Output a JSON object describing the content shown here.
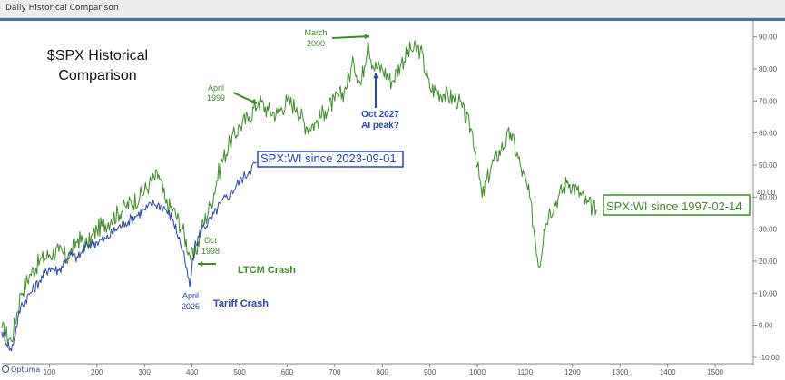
{
  "window": {
    "title": "Daily Historical Comparison"
  },
  "logo": {
    "text": "Optuma"
  },
  "colors": {
    "green": "#3f8a2a",
    "blue": "#2b48a6",
    "axis": "#555555",
    "grid": "#e6e6e6"
  },
  "chart_data": {
    "type": "line",
    "title": "$SPX Historical Comparison",
    "x_ticks": [
      100,
      200,
      300,
      400,
      500,
      600,
      700,
      800,
      900,
      1000,
      1100,
      1200,
      1300,
      1400,
      1500
    ],
    "y_ticks": [
      "-10.00",
      "0.00",
      "10.00",
      "20.00",
      "30.00",
      "40.00",
      "50.00",
      "60.00",
      "70.00",
      "80.00",
      "90.00"
    ],
    "y_tick_values": [
      -10,
      0,
      10,
      20,
      30,
      40,
      50,
      60,
      70,
      80,
      90
    ],
    "xlim": [
      0,
      1580
    ],
    "ylim": [
      -12,
      95
    ],
    "grid": false,
    "series": [
      {
        "name": "SPX:WI since 1997-02-14",
        "color": "#3f8a2a",
        "x": [
          0,
          20,
          40,
          60,
          80,
          100,
          120,
          140,
          160,
          180,
          200,
          230,
          260,
          290,
          310,
          330,
          345,
          360,
          380,
          395,
          405,
          420,
          440,
          460,
          480,
          500,
          520,
          540,
          560,
          580,
          600,
          620,
          640,
          660,
          680,
          700,
          720,
          740,
          755,
          770,
          780,
          800,
          820,
          840,
          860,
          880,
          900,
          930,
          960,
          990,
          1010,
          1030,
          1050,
          1070,
          1090,
          1110,
          1130,
          1140,
          1150,
          1170,
          1190,
          1210,
          1230,
          1250
        ],
        "y": [
          -1,
          -5,
          10,
          16,
          20,
          22,
          23,
          21,
          27,
          25,
          30,
          33,
          37,
          40,
          44,
          47,
          38,
          36,
          30,
          22,
          21,
          30,
          38,
          50,
          57,
          62,
          65,
          70,
          67,
          66,
          70,
          68,
          62,
          63,
          67,
          70,
          73,
          82,
          75,
          89,
          81,
          80,
          76,
          82,
          86,
          86,
          74,
          72,
          70,
          60,
          40,
          50,
          55,
          60,
          50,
          40,
          18,
          30,
          35,
          40,
          45,
          42,
          38,
          36
        ]
      },
      {
        "name": "SPX:WI since 2023-09-01",
        "color": "#2b48a6",
        "x": [
          0,
          20,
          40,
          60,
          80,
          100,
          120,
          140,
          160,
          180,
          200,
          220,
          240,
          260,
          280,
          300,
          320,
          340,
          360,
          375,
          385,
          395,
          405,
          420,
          440,
          460,
          480,
          500,
          520,
          535
        ],
        "y": [
          -2,
          -8,
          6,
          10,
          14,
          18,
          17,
          22,
          21,
          25,
          26,
          27,
          30,
          32,
          34,
          36,
          38,
          37,
          33,
          26,
          20,
          12,
          24,
          30,
          33,
          38,
          41,
          45,
          48,
          51
        ]
      }
    ],
    "annotations": [
      {
        "id": "april-1999",
        "text": [
          "April",
          "1999"
        ]
      },
      {
        "id": "march-2000",
        "text": [
          "March",
          "2000"
        ]
      },
      {
        "id": "oct-2027",
        "text": [
          "Oct 2027",
          "AI peak?"
        ]
      },
      {
        "id": "oct-1998",
        "text": [
          "Oct",
          "1998"
        ]
      },
      {
        "id": "ltcm",
        "text": [
          "LTCM Crash"
        ]
      },
      {
        "id": "april-2025",
        "text": [
          "April",
          "2025"
        ]
      },
      {
        "id": "tariff",
        "text": [
          "Tariff Crash"
        ]
      }
    ],
    "last_value_label": "40.00"
  }
}
